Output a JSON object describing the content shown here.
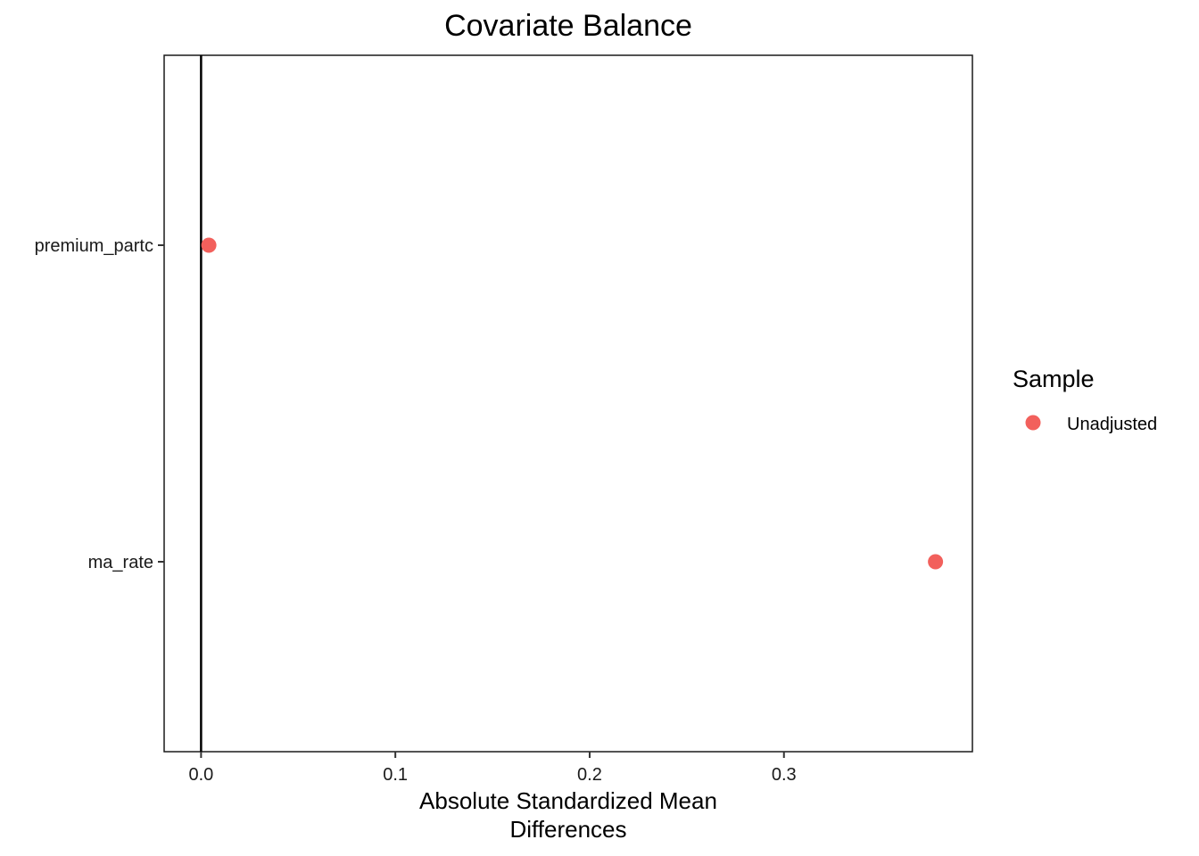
{
  "chart_data": {
    "type": "scatter",
    "title": "Covariate Balance",
    "xlabel_lines": [
      "Absolute Standardized Mean",
      "Differences"
    ],
    "ylabel": "",
    "categories": [
      "premium_partc",
      "ma_rate"
    ],
    "x_ticks": [
      0.0,
      0.1,
      0.2,
      0.3
    ],
    "x_tick_labels": [
      "0.0",
      "0.1",
      "0.2",
      "0.3"
    ],
    "xlim": [
      -0.019,
      0.397
    ],
    "reference_line_x": 0,
    "grid": false,
    "legend": {
      "title": "Sample",
      "position": "right",
      "entries": [
        {
          "label": "Unadjusted",
          "color": "#f2605c"
        }
      ]
    },
    "series": [
      {
        "name": "Unadjusted",
        "color": "#f2605c",
        "points": [
          {
            "category": "premium_partc",
            "x": 0.004
          },
          {
            "category": "ma_rate",
            "x": 0.378
          }
        ]
      }
    ]
  }
}
